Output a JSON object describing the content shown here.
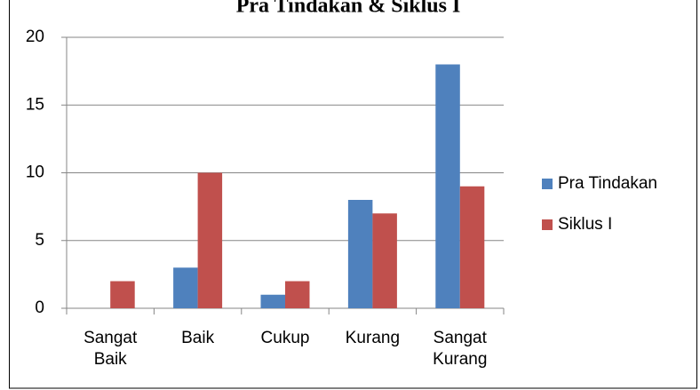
{
  "chart_data": {
    "type": "bar",
    "title": "Pra Tindakan & Siklus I",
    "categories": [
      "Sangat Baik",
      "Baik",
      "Cukup",
      "Kurang",
      "Sangat Kurang"
    ],
    "series": [
      {
        "name": "Pra Tindakan",
        "color": "#4f81bd",
        "values": [
          0,
          3,
          1,
          8,
          18
        ]
      },
      {
        "name": "Siklus I",
        "color": "#c0504d",
        "values": [
          2,
          10,
          2,
          7,
          9
        ]
      }
    ],
    "ylim": [
      0,
      20
    ],
    "yticks": [
      0,
      5,
      10,
      15,
      20
    ],
    "grid": true,
    "legend": "right"
  }
}
